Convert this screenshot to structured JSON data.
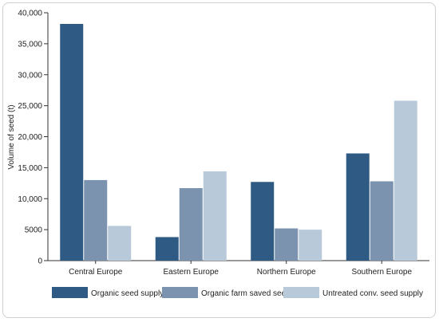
{
  "chart_data": {
    "type": "bar",
    "title": "",
    "xlabel": "",
    "ylabel": "Volume of seed (t)",
    "ylim": [
      0,
      40000
    ],
    "yticks": [
      0,
      5000,
      10000,
      15000,
      20000,
      25000,
      30000,
      35000,
      40000
    ],
    "ytick_labels": [
      "0",
      "5000",
      "10,000",
      "15,000",
      "20,000",
      "25,000",
      "30,000",
      "35,000",
      "40,000"
    ],
    "categories": [
      "Central Europe",
      "Eastern Europe",
      "Northern Europe",
      "Southern Europe"
    ],
    "series": [
      {
        "name": "Organic seed supply",
        "color": "#2e5a84",
        "values": [
          38200,
          3800,
          12700,
          17300
        ]
      },
      {
        "name": "Organic farm saved seed",
        "color": "#7b93ae",
        "values": [
          13000,
          11700,
          5200,
          12800
        ]
      },
      {
        "name": "Untreated conv. seed supply",
        "color": "#b8c9d9",
        "values": [
          5600,
          14400,
          5000,
          25800
        ]
      }
    ],
    "grid": false,
    "legend_position": "bottom"
  }
}
